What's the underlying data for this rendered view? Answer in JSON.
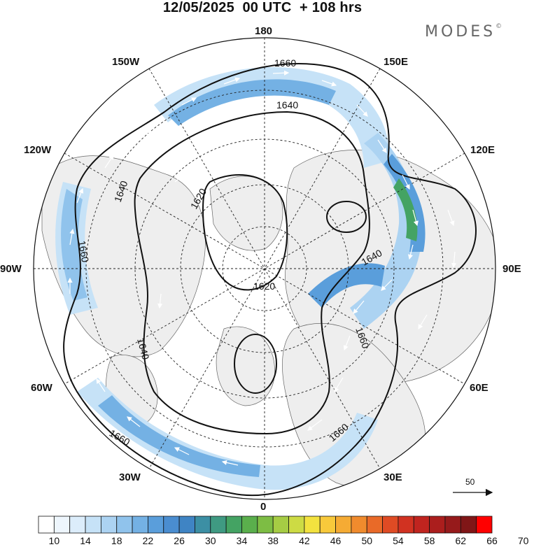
{
  "title": "12/05/2025  00 UTC  + 108 hrs",
  "brand": "MODES",
  "brand_mark": "©",
  "longitude_labels": {
    "top": "180",
    "lon_150w": "150W",
    "lon_150e": "150E",
    "lon_120w": "120W",
    "lon_120e": "120E",
    "lon_90w": "90W",
    "lon_90e": "90E",
    "lon_60w": "60W",
    "lon_60e": "60E",
    "lon_30w": "30W",
    "lon_30e": "30E",
    "bottom": "0"
  },
  "contour_labels": [
    "1660",
    "1640",
    "1620",
    "1640",
    "1660",
    "1640",
    "1620",
    "1640",
    "1660",
    "1660",
    "1660"
  ],
  "reference_vector": {
    "value": "50"
  },
  "colorbar": {
    "tick_labels": [
      "10",
      "14",
      "18",
      "22",
      "26",
      "30",
      "34",
      "38",
      "42",
      "46",
      "50",
      "54",
      "58",
      "62",
      "66",
      "70"
    ],
    "colors": [
      "#ffffff",
      "#eef6fd",
      "#dcedfb",
      "#c6e2f7",
      "#acd3f2",
      "#90c3ec",
      "#74b1e4",
      "#5a9edb",
      "#4a8dd0",
      "#3f84c4",
      "#3c8fa4",
      "#3f9a82",
      "#44a363",
      "#5aaf4c",
      "#7dbd44",
      "#a6cc44",
      "#cddb44",
      "#f3e23f",
      "#f8c93b",
      "#f5ab34",
      "#f08b2d",
      "#e96a28",
      "#df4b24",
      "#d13221",
      "#c0241f",
      "#ab1e1d",
      "#961a1b",
      "#801617",
      "#ff0000"
    ]
  },
  "legend_colors": {
    "land": "#f0f0f0",
    "ocean": "#ffffff",
    "jet_weak": "#d7e9f8",
    "jet_mid": "#9fcbef",
    "jet_strong": "#5a9edb",
    "jet_core": "#44a363"
  }
}
